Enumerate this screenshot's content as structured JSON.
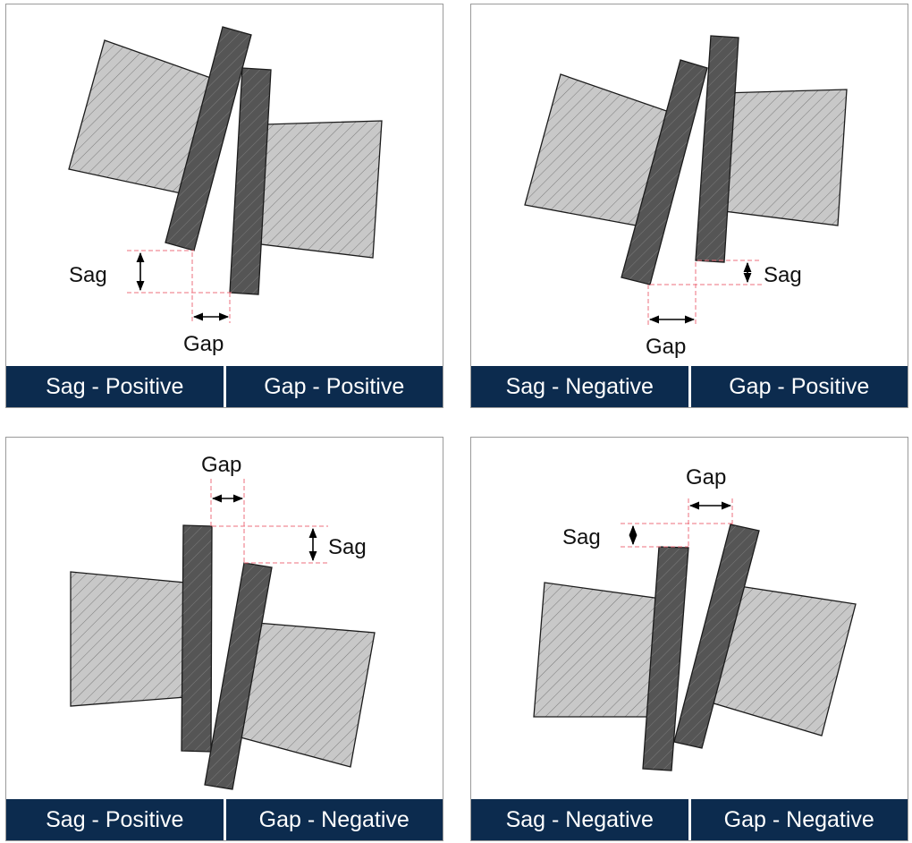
{
  "colors": {
    "caption_bg": "#0c2b4e",
    "guide": "#ee6f7c",
    "blade": "#555555",
    "block": "#c8c8c8"
  },
  "panels": [
    {
      "sag_caption": "Sag - Positive",
      "gap_caption": "Gap - Positive",
      "sag_label": "Sag",
      "gap_label": "Gap"
    },
    {
      "sag_caption": "Sag - Negative",
      "gap_caption": "Gap - Positive",
      "sag_label": "Sag",
      "gap_label": "Gap"
    },
    {
      "sag_caption": "Sag - Positive",
      "gap_caption": "Gap - Negative",
      "sag_label": "Sag",
      "gap_label": "Gap"
    },
    {
      "sag_caption": "Sag - Negative",
      "gap_caption": "Gap - Negative",
      "sag_label": "Sag",
      "gap_label": "Gap"
    }
  ]
}
